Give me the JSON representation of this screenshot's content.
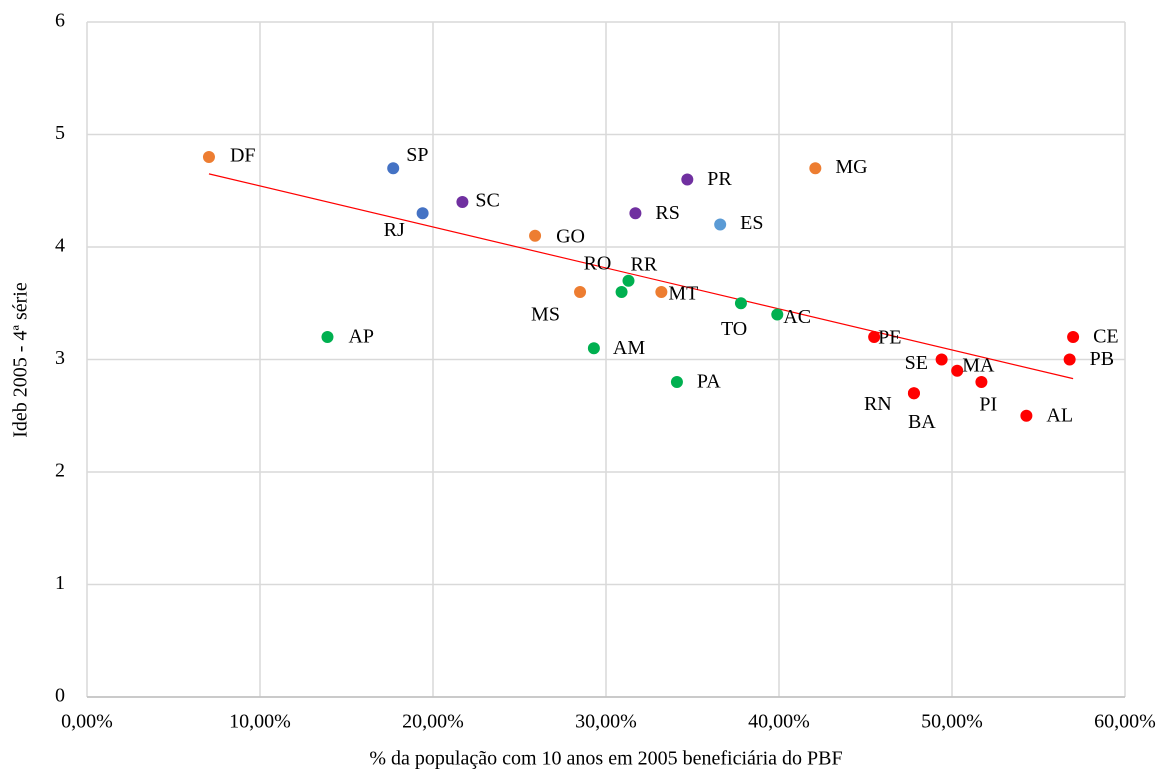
{
  "chart_data": {
    "type": "scatter",
    "x_label": "% da população com 10 anos em 2005 beneficiária do PBF",
    "y_label": "Ideb 2005 - 4ª série",
    "labels": [
      "DF",
      "SP",
      "RJ",
      "SC",
      "GO",
      "MS",
      "RO",
      "RR",
      "MT",
      "AM",
      "PA",
      "RS",
      "PR",
      "ES",
      "MG",
      "TO",
      "AC",
      "AP",
      "PE",
      "SE",
      "MA",
      "PI",
      "RN",
      "BA",
      "AL",
      "CE",
      "PB"
    ],
    "x": [
      7.05,
      17.7,
      19.4,
      21.7,
      25.9,
      28.5,
      30.9,
      31.3,
      33.2,
      29.3,
      34.1,
      31.7,
      34.7,
      36.6,
      42.1,
      37.8,
      39.9,
      13.9,
      45.5,
      49.4,
      50.3,
      51.7,
      47.8,
      47.8,
      54.3,
      57.0,
      56.8
    ],
    "y": [
      4.8,
      4.7,
      4.3,
      4.4,
      4.1,
      3.6,
      3.6,
      3.7,
      3.6,
      3.1,
      2.8,
      4.3,
      4.6,
      4.2,
      4.7,
      3.5,
      3.4,
      3.2,
      3.2,
      3.0,
      2.9,
      2.8,
      2.7,
      2.7,
      2.5,
      3.2,
      3.0
    ],
    "colors": [
      "#ed7d31",
      "#4472c4",
      "#4472c4",
      "#7030a0",
      "#ed7d31",
      "#ed7d31",
      "#00b050",
      "#00b050",
      "#ed7d31",
      "#00b050",
      "#00b050",
      "#7030a0",
      "#7030a0",
      "#5b9bd5",
      "#ed7d31",
      "#00b050",
      "#00b050",
      "#00b050",
      "#ff0000",
      "#ff0000",
      "#ff0000",
      "#ff0000",
      "#ff0000",
      "#ff0000",
      "#ff0000",
      "#ff0000",
      "#ff0000"
    ],
    "trendline": {
      "x": [
        7.05,
        57.0
      ],
      "y": [
        4.65,
        2.83
      ],
      "color": "#ff0000"
    },
    "xlim": [
      0,
      60
    ],
    "xticks": [
      {
        "value": 0,
        "label": "0,00%"
      },
      {
        "value": 10,
        "label": "10,00%"
      },
      {
        "value": 20,
        "label": "20,00%"
      },
      {
        "value": 30,
        "label": "30,00%"
      },
      {
        "value": 40,
        "label": "40,00%"
      },
      {
        "value": 50,
        "label": "50,00%"
      },
      {
        "value": 60,
        "label": "60,00%"
      }
    ],
    "ylim": [
      0,
      6
    ],
    "yticks": [
      0,
      1,
      2,
      3,
      4,
      5,
      6
    ],
    "grid": true
  }
}
